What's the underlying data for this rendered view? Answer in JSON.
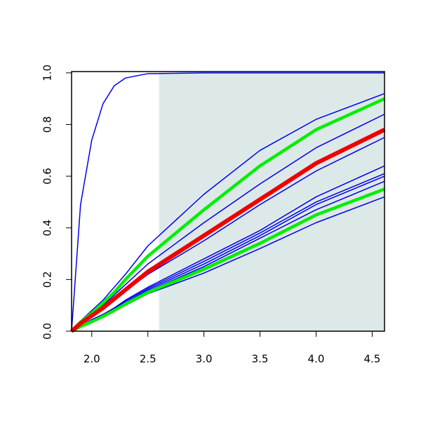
{
  "chart_data": {
    "type": "line",
    "x": [
      1.82,
      1.9,
      2.0,
      2.1,
      2.2,
      2.3,
      2.5,
      3.0,
      3.5,
      4.0,
      4.61
    ],
    "xlim": [
      1.82,
      4.61
    ],
    "ylim": [
      0,
      1.005
    ],
    "xticks": [
      {
        "value": 2,
        "label": "2.0"
      },
      2.5,
      {
        "value": 3,
        "label": "3.0"
      },
      3.5,
      {
        "value": 4,
        "label": "4.0"
      },
      4.5
    ],
    "yticks": [
      {
        "value": 0,
        "label": "0.0"
      },
      0.2,
      0.4,
      0.6,
      0.8,
      {
        "value": 1,
        "label": "1.0"
      }
    ],
    "highlight": {
      "xmin": 2.6,
      "color": "#dde9e9"
    },
    "series": [
      {
        "color": "#0000ee",
        "width": 1.5,
        "values": [
          0,
          0.49,
          0.74,
          0.88,
          0.95,
          0.98,
          0.997,
          1,
          1,
          1,
          1
        ]
      },
      {
        "color": "#0000ee",
        "width": 1.5,
        "values": [
          0,
          0.04,
          0.08,
          0.12,
          0.17,
          0.22,
          0.33,
          0.53,
          0.7,
          0.82,
          0.92
        ]
      },
      {
        "color": "#0000ee",
        "width": 1.5,
        "values": [
          0,
          0.03,
          0.065,
          0.1,
          0.14,
          0.18,
          0.26,
          0.42,
          0.57,
          0.71,
          0.84
        ]
      },
      {
        "color": "#0000ee",
        "width": 1.5,
        "values": [
          0,
          0.025,
          0.055,
          0.085,
          0.12,
          0.155,
          0.22,
          0.35,
          0.49,
          0.62,
          0.75
        ]
      },
      {
        "color": "#0000ee",
        "width": 1.5,
        "values": [
          0,
          0.02,
          0.045,
          0.065,
          0.09,
          0.12,
          0.17,
          0.28,
          0.39,
          0.52,
          0.64
        ]
      },
      {
        "color": "#0000ee",
        "width": 1.5,
        "values": [
          0,
          0.02,
          0.043,
          0.063,
          0.088,
          0.115,
          0.165,
          0.27,
          0.38,
          0.5,
          0.61
        ]
      },
      {
        "color": "#0000ee",
        "width": 1.5,
        "values": [
          0,
          0.02,
          0.04,
          0.06,
          0.085,
          0.11,
          0.16,
          0.26,
          0.37,
          0.49,
          0.6
        ]
      },
      {
        "color": "#0000ee",
        "width": 1.5,
        "values": [
          0,
          0.018,
          0.038,
          0.058,
          0.08,
          0.105,
          0.155,
          0.25,
          0.36,
          0.47,
          0.58
        ]
      },
      {
        "color": "#0000ee",
        "width": 1.5,
        "values": [
          0,
          0.017,
          0.036,
          0.055,
          0.078,
          0.1,
          0.145,
          0.225,
          0.32,
          0.42,
          0.52
        ]
      },
      {
        "color": "#00ee00",
        "width": 4.5,
        "values": [
          0,
          0.035,
          0.07,
          0.11,
          0.15,
          0.2,
          0.29,
          0.47,
          0.64,
          0.78,
          0.9
        ]
      },
      {
        "color": "#00ee00",
        "width": 4.5,
        "values": [
          0,
          0.018,
          0.037,
          0.057,
          0.08,
          0.105,
          0.15,
          0.24,
          0.34,
          0.45,
          0.55
        ]
      },
      {
        "color": "#ee0000",
        "width": 6,
        "values": [
          0,
          0.03,
          0.06,
          0.09,
          0.125,
          0.16,
          0.23,
          0.37,
          0.51,
          0.65,
          0.78
        ]
      }
    ]
  }
}
